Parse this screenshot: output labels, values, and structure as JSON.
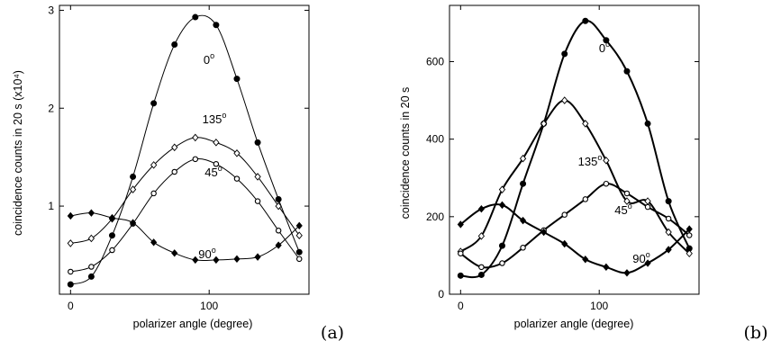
{
  "chart_data": [
    {
      "type": "scatter",
      "panel_label": "(a)",
      "xlabel": "polarizer angle (degree)",
      "ylabel": "coincidence counts in 20 s (x10⁴)",
      "xlim": [
        -8,
        172
      ],
      "ylim": [
        0.1,
        3.05
      ],
      "xticks": [
        0,
        100
      ],
      "yticks": [
        1,
        2,
        3
      ],
      "grid": false,
      "legend": "none (series labelled inline)",
      "series": [
        {
          "name": "0",
          "marker": "filled-circle",
          "fit": "thin-curve",
          "x": [
            0,
            15,
            30,
            45,
            60,
            75,
            90,
            105,
            120,
            135,
            150,
            165
          ],
          "y": [
            0.2,
            0.28,
            0.7,
            1.3,
            2.05,
            2.65,
            2.93,
            2.85,
            2.3,
            1.65,
            1.07,
            0.53
          ]
        },
        {
          "name": "135",
          "marker": "open-diamond",
          "fit": "thin-curve",
          "x": [
            0,
            15,
            30,
            45,
            60,
            75,
            90,
            105,
            120,
            135,
            150,
            165
          ],
          "y": [
            0.62,
            0.67,
            0.87,
            1.17,
            1.42,
            1.6,
            1.7,
            1.65,
            1.54,
            1.3,
            1.0,
            0.7
          ]
        },
        {
          "name": "45",
          "marker": "open-circle",
          "fit": "thin-curve",
          "x": [
            0,
            15,
            30,
            45,
            60,
            75,
            90,
            105,
            120,
            135,
            150,
            165
          ],
          "y": [
            0.33,
            0.38,
            0.55,
            0.82,
            1.13,
            1.35,
            1.48,
            1.43,
            1.28,
            1.05,
            0.75,
            0.46
          ]
        },
        {
          "name": "90",
          "marker": "filled-diamond",
          "fit": "thin-curve",
          "x": [
            0,
            15,
            30,
            45,
            60,
            75,
            90,
            105,
            120,
            135,
            150,
            165
          ],
          "y": [
            0.9,
            0.93,
            0.88,
            0.83,
            0.63,
            0.52,
            0.45,
            0.45,
            0.46,
            0.48,
            0.6,
            0.8
          ]
        }
      ]
    },
    {
      "type": "scatter",
      "panel_label": "(b)",
      "xlabel": "polarizer angle (degree)",
      "ylabel": "coincidence counts in 20 s",
      "xlim": [
        -8,
        172
      ],
      "ylim": [
        0,
        745
      ],
      "xticks": [
        0,
        100
      ],
      "yticks": [
        0,
        200,
        400,
        600
      ],
      "grid": false,
      "legend": "none (series labelled inline)",
      "series": [
        {
          "name": "0",
          "marker": "filled-circle",
          "fit": "thick-curve",
          "x": [
            0,
            15,
            30,
            45,
            60,
            75,
            90,
            105,
            120,
            135,
            150,
            165
          ],
          "y": [
            48,
            50,
            125,
            285,
            440,
            620,
            705,
            655,
            575,
            440,
            240,
            118
          ]
        },
        {
          "name": "135",
          "marker": "open-diamond",
          "fit": "thick-curve",
          "x": [
            0,
            15,
            30,
            45,
            60,
            75,
            90,
            105,
            120,
            135,
            150,
            165
          ],
          "y": [
            110,
            150,
            270,
            350,
            440,
            500,
            440,
            345,
            240,
            240,
            160,
            105
          ]
        },
        {
          "name": "45",
          "marker": "open-circle",
          "fit": "thick-curve",
          "x": [
            0,
            15,
            30,
            45,
            60,
            75,
            90,
            105,
            120,
            135,
            150,
            165
          ],
          "y": [
            105,
            70,
            80,
            120,
            165,
            205,
            245,
            285,
            260,
            225,
            195,
            152
          ]
        },
        {
          "name": "90",
          "marker": "filled-diamond",
          "fit": "thick-curve",
          "x": [
            0,
            15,
            30,
            45,
            60,
            75,
            90,
            105,
            120,
            135,
            150,
            165
          ],
          "y": [
            180,
            220,
            230,
            190,
            160,
            130,
            90,
            70,
            55,
            80,
            115,
            168
          ]
        }
      ]
    }
  ]
}
